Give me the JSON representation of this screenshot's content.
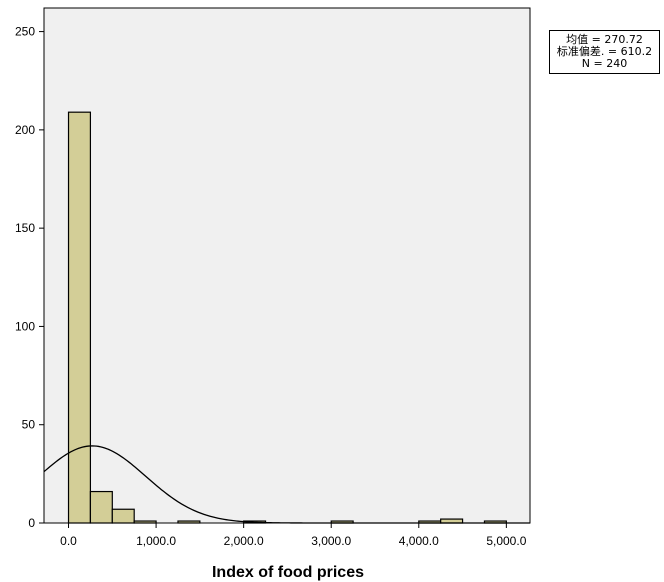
{
  "chart_data": {
    "type": "histogram",
    "title": "",
    "xlabel": "Index of food prices",
    "ylabel": "",
    "xlim": [
      -280,
      5270
    ],
    "ylim": [
      0,
      262
    ],
    "bin_width": 250,
    "bins": [
      {
        "x0": 0,
        "x1": 250,
        "count": 209
      },
      {
        "x0": 250,
        "x1": 500,
        "count": 16
      },
      {
        "x0": 500,
        "x1": 750,
        "count": 7
      },
      {
        "x0": 750,
        "x1": 1000,
        "count": 1
      },
      {
        "x0": 1250,
        "x1": 1500,
        "count": 1
      },
      {
        "x0": 2000,
        "x1": 2250,
        "count": 1
      },
      {
        "x0": 3000,
        "x1": 3250,
        "count": 1
      },
      {
        "x0": 4000,
        "x1": 4250,
        "count": 1
      },
      {
        "x0": 4250,
        "x1": 4500,
        "count": 2
      },
      {
        "x0": 4750,
        "x1": 5000,
        "count": 1
      }
    ],
    "x_ticks": [
      {
        "value": 0,
        "label": "0.0"
      },
      {
        "value": 1000,
        "label": "1,000.0"
      },
      {
        "value": 2000,
        "label": "2,000.0"
      },
      {
        "value": 3000,
        "label": "3,000.0"
      },
      {
        "value": 4000,
        "label": "4,000.0"
      },
      {
        "value": 5000,
        "label": "5,000.0"
      }
    ],
    "y_ticks": [
      {
        "value": 0,
        "label": "0"
      },
      {
        "value": 50,
        "label": "50"
      },
      {
        "value": 100,
        "label": "100"
      },
      {
        "value": 150,
        "label": "150"
      },
      {
        "value": 200,
        "label": "200"
      },
      {
        "value": 250,
        "label": "250"
      }
    ],
    "normal_curve": {
      "mean": 270.72,
      "sd": 610.2,
      "n": 240
    },
    "stats": {
      "mean_label": "均值 = 270.72",
      "sd_label": "标准偏差. = 610.2",
      "n_label": "N = 240"
    },
    "grid": false,
    "colors": {
      "plot_background": "#f0f0f0",
      "bar_fill": "#d3ce97",
      "bar_stroke": "#000000",
      "curve": "#000000"
    }
  }
}
